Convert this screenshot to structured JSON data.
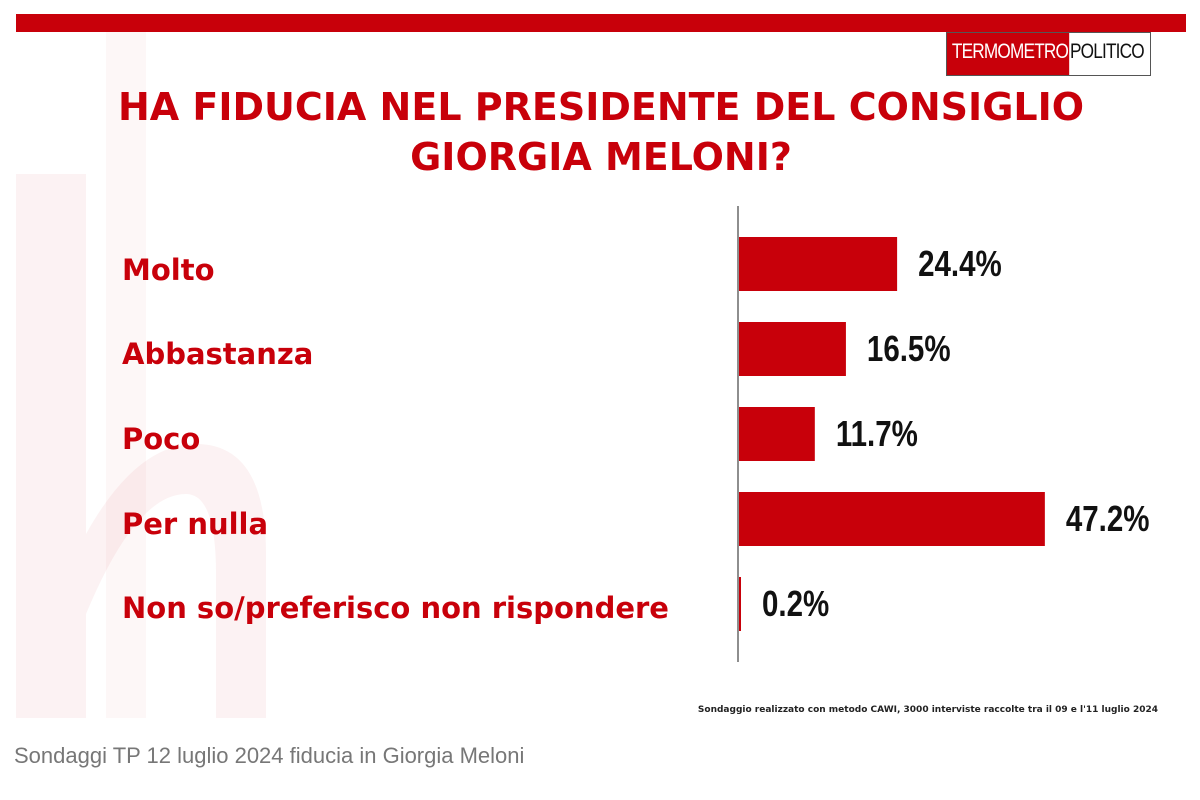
{
  "brand": {
    "logo_left": "TERMOMETRO",
    "logo_right": "POLITICO"
  },
  "title_lines": [
    "HA FIDUCIA NEL PRESIDENTE DEL CONSIGLIO",
    "GIORGIA MELONI?"
  ],
  "source_note": "Sondaggio realizzato con metodo CAWI, 3000 interviste raccolte tra il 09 e l'11 luglio 2024",
  "caption": "Sondaggi TP 12 luglio 2024 fiducia in Giorgia Meloni",
  "colors": {
    "accent": "#c8000a",
    "text": "#111111"
  },
  "chart_data": {
    "type": "bar",
    "orientation": "horizontal",
    "title": "HA FIDUCIA NEL PRESIDENTE DEL CONSIGLIO GIORGIA MELONI?",
    "categories": [
      "Molto",
      "Abbastanza",
      "Poco",
      "Per nulla",
      "Non so/preferisco non rispondere"
    ],
    "values": [
      24.4,
      16.5,
      11.7,
      47.2,
      0.2
    ],
    "value_labels": [
      "24.4%",
      "16.5%",
      "11.7%",
      "47.2%",
      "0.2%"
    ],
    "unit": "%",
    "grid": false,
    "legend": "none"
  }
}
